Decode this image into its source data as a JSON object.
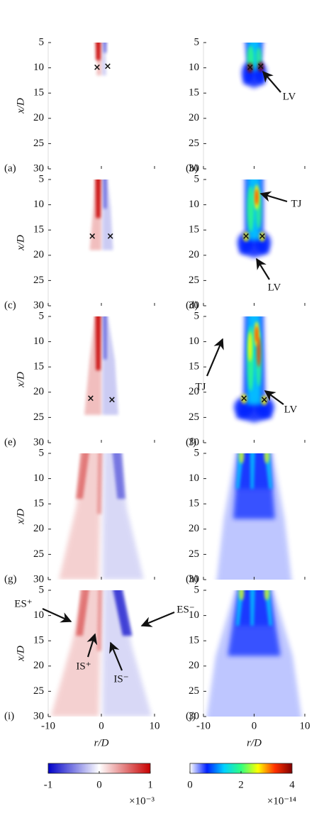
{
  "figure": {
    "x_label": "r/D",
    "y_label": "x/D",
    "xlim": [
      -10,
      10
    ],
    "xticks": [
      -10,
      0,
      10
    ],
    "ylim": [
      5,
      30
    ],
    "yticks": [
      5,
      10,
      15,
      20,
      25,
      30
    ],
    "panels": [
      {
        "label": "(a)",
        "annotations": []
      },
      {
        "label": "(b)",
        "annotations": [
          "LV"
        ]
      },
      {
        "label": "(c)",
        "annotations": []
      },
      {
        "label": "(d)",
        "annotations": [
          "TJ",
          "LV"
        ]
      },
      {
        "label": "(e)",
        "annotations": []
      },
      {
        "label": "(f)",
        "annotations": [
          "TJ",
          "LV"
        ]
      },
      {
        "label": "(g)",
        "annotations": []
      },
      {
        "label": "(h)",
        "annotations": []
      },
      {
        "label": "(i)",
        "annotations": [
          "ES⁺",
          "ES⁻",
          "IS⁺",
          "IS⁻"
        ]
      },
      {
        "label": "(j)",
        "annotations": []
      }
    ],
    "colorbars": [
      {
        "lim": [
          -1,
          1
        ],
        "ticks": [
          -1,
          0,
          1
        ],
        "multiplier": "×10⁻³",
        "colors": [
          "#0000c8",
          "#ffffff",
          "#c80000"
        ]
      },
      {
        "lim": [
          0,
          4
        ],
        "ticks": [
          0,
          2,
          4
        ],
        "multiplier": "×10⁻¹⁴",
        "colors": [
          "#ffffff",
          "#0020ff",
          "#00d0ff",
          "#30ff80",
          "#ffff00",
          "#ff3000",
          "#800000"
        ]
      }
    ]
  }
}
